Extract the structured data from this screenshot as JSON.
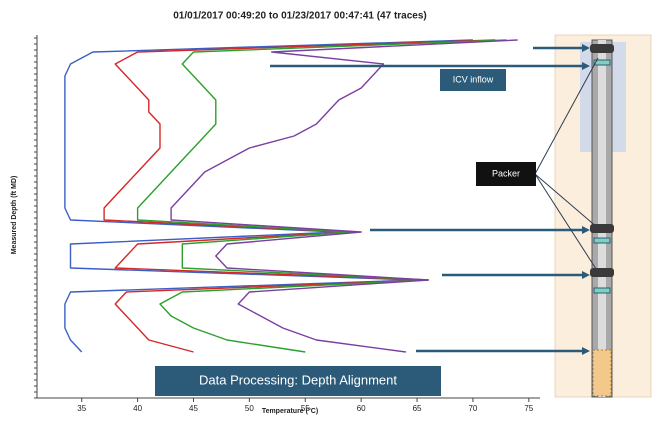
{
  "chart_data": {
    "type": "line",
    "title": "01/01/2017 00:49:20 to 01/23/2017 00:47:41 (47 traces)",
    "x_label": "Temperature (°C)",
    "y_label": "Measured Depth (ft MD)",
    "annotations": [
      "ICV inflow",
      "Packer",
      "Data Processing: Depth Alignment"
    ],
    "xlim": [
      31,
      76
    ],
    "xticks": [
      35,
      40,
      45,
      50,
      55,
      60,
      65,
      70,
      75
    ],
    "categories": [
      null,
      null,
      null,
      null,
      null,
      null,
      null,
      null,
      null,
      null,
      null,
      null,
      null,
      null,
      null,
      null,
      null,
      null,
      null,
      null,
      null,
      null,
      null,
      null,
      null,
      null,
      null,
      null,
      null,
      null
    ],
    "series": [
      {
        "color": "#3b5fc4",
        "values": [
          70,
          36,
          34,
          33.5,
          33.5,
          33.5,
          33.5,
          33.5,
          33.5,
          33.5,
          33.5,
          33.5,
          33.5,
          33.5,
          33.5,
          34,
          58,
          34,
          34,
          34,
          65,
          34,
          33.5,
          33.5,
          33.5,
          34,
          35,
          null,
          null,
          null
        ]
      },
      {
        "color": "#d62728",
        "values": [
          72,
          40,
          38,
          39,
          40,
          41,
          41,
          42,
          42,
          42,
          41,
          40,
          39,
          38,
          37,
          37,
          59,
          40,
          39,
          38,
          66,
          39,
          38,
          39,
          40,
          41,
          45,
          null,
          null,
          null
        ]
      },
      {
        "color": "#2ca02c",
        "values": [
          73,
          45,
          44,
          45,
          46,
          47,
          47,
          47,
          46,
          45,
          44,
          43,
          42,
          41,
          40,
          40,
          59,
          44,
          44,
          44,
          66,
          44,
          42,
          43,
          45,
          48,
          55,
          null,
          null,
          null
        ]
      },
      {
        "color": "#7b3fa0",
        "values": [
          74,
          52,
          62,
          61,
          60,
          58,
          57,
          56,
          54,
          50,
          48,
          46,
          45,
          44,
          43,
          43,
          60,
          48,
          47,
          48,
          66,
          50,
          49,
          51,
          53,
          56,
          64,
          null,
          null,
          null
        ]
      }
    ]
  }
}
